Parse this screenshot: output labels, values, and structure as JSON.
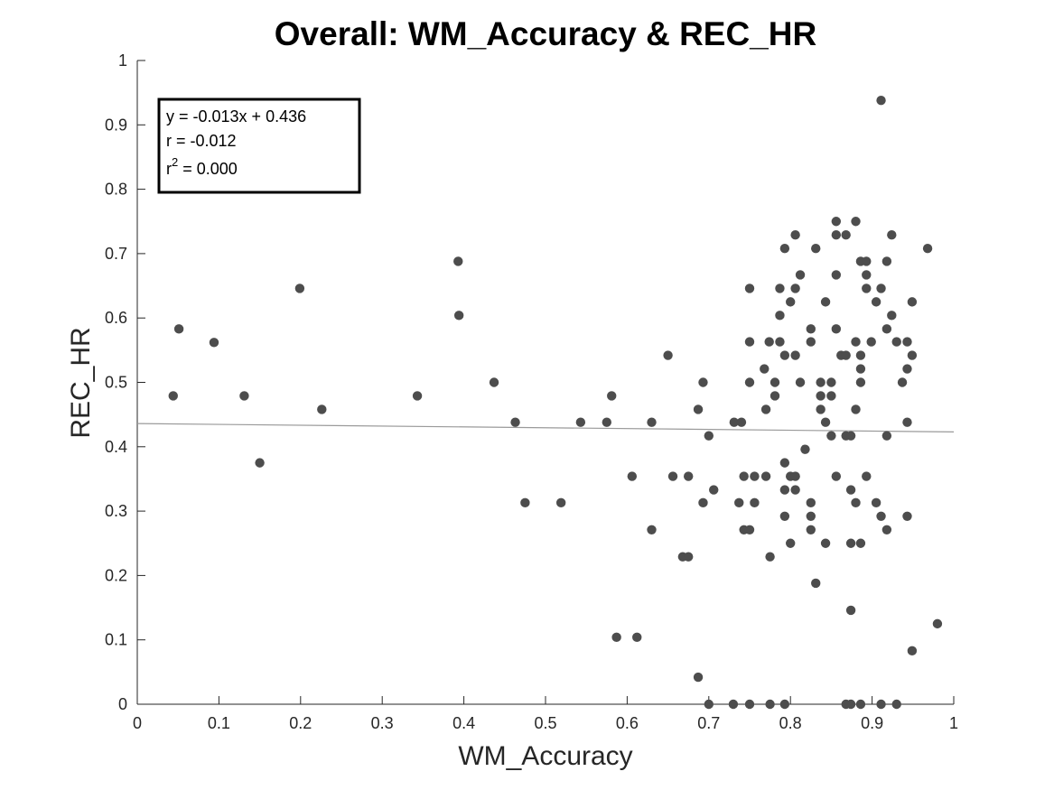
{
  "chart_data": {
    "type": "scatter",
    "title": "Overall: WM_Accuracy & REC_HR",
    "xlabel": "WM_Accuracy",
    "ylabel": "REC_HR",
    "xlim": [
      0,
      1
    ],
    "ylim": [
      0,
      1
    ],
    "xticks": [
      "0",
      "0.1",
      "0.2",
      "0.3",
      "0.4",
      "0.5",
      "0.6",
      "0.7",
      "0.8",
      "0.9",
      "1"
    ],
    "yticks": [
      "0",
      "0.1",
      "0.2",
      "0.3",
      "0.4",
      "0.5",
      "0.6",
      "0.7",
      "0.8",
      "0.9",
      "1"
    ],
    "grid": false,
    "marker_color": "#4d4d4d",
    "fit_line": {
      "slope": -0.013,
      "intercept": 0.436,
      "color": "#9a9a9a"
    },
    "stats": {
      "equation": "y = -0.013x + 0.436",
      "r": "r = -0.012",
      "r2_prefix": "r",
      "r2_exponent": "2",
      "r2_value": " = 0.000"
    },
    "points": [
      [
        0.044,
        0.479
      ],
      [
        0.051,
        0.583
      ],
      [
        0.094,
        0.562
      ],
      [
        0.131,
        0.479
      ],
      [
        0.15,
        0.375
      ],
      [
        0.199,
        0.646
      ],
      [
        0.226,
        0.458
      ],
      [
        0.343,
        0.479
      ],
      [
        0.393,
        0.688
      ],
      [
        0.394,
        0.604
      ],
      [
        0.437,
        0.5
      ],
      [
        0.463,
        0.438
      ],
      [
        0.475,
        0.313
      ],
      [
        0.519,
        0.313
      ],
      [
        0.543,
        0.438
      ],
      [
        0.575,
        0.438
      ],
      [
        0.581,
        0.479
      ],
      [
        0.587,
        0.104
      ],
      [
        0.606,
        0.354
      ],
      [
        0.612,
        0.104
      ],
      [
        0.63,
        0.271
      ],
      [
        0.63,
        0.438
      ],
      [
        0.65,
        0.542
      ],
      [
        0.656,
        0.354
      ],
      [
        0.668,
        0.229
      ],
      [
        0.675,
        0.229
      ],
      [
        0.675,
        0.354
      ],
      [
        0.687,
        0.042
      ],
      [
        0.687,
        0.458
      ],
      [
        0.693,
        0.5
      ],
      [
        0.693,
        0.313
      ],
      [
        0.7,
        0.417
      ],
      [
        0.7,
        0.0
      ],
      [
        0.706,
        0.333
      ],
      [
        0.73,
        0.0
      ],
      [
        0.731,
        0.438
      ],
      [
        0.737,
        0.313
      ],
      [
        0.74,
        0.438
      ],
      [
        0.743,
        0.354
      ],
      [
        0.743,
        0.271
      ],
      [
        0.75,
        0.271
      ],
      [
        0.75,
        0.646
      ],
      [
        0.75,
        0.563
      ],
      [
        0.75,
        0.5
      ],
      [
        0.75,
        0.0
      ],
      [
        0.756,
        0.354
      ],
      [
        0.756,
        0.313
      ],
      [
        0.768,
        0.521
      ],
      [
        0.77,
        0.354
      ],
      [
        0.77,
        0.458
      ],
      [
        0.774,
        0.563
      ],
      [
        0.775,
        0.229
      ],
      [
        0.775,
        0.0
      ],
      [
        0.781,
        0.5
      ],
      [
        0.781,
        0.479
      ],
      [
        0.787,
        0.604
      ],
      [
        0.787,
        0.646
      ],
      [
        0.787,
        0.563
      ],
      [
        0.793,
        0.542
      ],
      [
        0.793,
        0.708
      ],
      [
        0.793,
        0.375
      ],
      [
        0.793,
        0.333
      ],
      [
        0.793,
        0.292
      ],
      [
        0.793,
        0.0
      ],
      [
        0.8,
        0.354
      ],
      [
        0.8,
        0.625
      ],
      [
        0.8,
        0.25
      ],
      [
        0.806,
        0.729
      ],
      [
        0.806,
        0.646
      ],
      [
        0.806,
        0.542
      ],
      [
        0.806,
        0.354
      ],
      [
        0.806,
        0.333
      ],
      [
        0.812,
        0.667
      ],
      [
        0.812,
        0.5
      ],
      [
        0.818,
        0.396
      ],
      [
        0.825,
        0.583
      ],
      [
        0.825,
        0.563
      ],
      [
        0.825,
        0.313
      ],
      [
        0.825,
        0.292
      ],
      [
        0.825,
        0.271
      ],
      [
        0.831,
        0.708
      ],
      [
        0.831,
        0.188
      ],
      [
        0.837,
        0.5
      ],
      [
        0.837,
        0.479
      ],
      [
        0.837,
        0.458
      ],
      [
        0.843,
        0.625
      ],
      [
        0.843,
        0.438
      ],
      [
        0.843,
        0.25
      ],
      [
        0.85,
        0.5
      ],
      [
        0.85,
        0.479
      ],
      [
        0.85,
        0.417
      ],
      [
        0.856,
        0.75
      ],
      [
        0.856,
        0.729
      ],
      [
        0.856,
        0.667
      ],
      [
        0.856,
        0.583
      ],
      [
        0.856,
        0.354
      ],
      [
        0.862,
        0.542
      ],
      [
        0.868,
        0.729
      ],
      [
        0.868,
        0.542
      ],
      [
        0.868,
        0.417
      ],
      [
        0.868,
        0.0
      ],
      [
        0.874,
        0.417
      ],
      [
        0.874,
        0.333
      ],
      [
        0.874,
        0.25
      ],
      [
        0.874,
        0.146
      ],
      [
        0.874,
        0.0
      ],
      [
        0.88,
        0.75
      ],
      [
        0.88,
        0.563
      ],
      [
        0.88,
        0.458
      ],
      [
        0.88,
        0.313
      ],
      [
        0.886,
        0.688
      ],
      [
        0.886,
        0.542
      ],
      [
        0.886,
        0.521
      ],
      [
        0.886,
        0.5
      ],
      [
        0.886,
        0.25
      ],
      [
        0.886,
        0.0
      ],
      [
        0.893,
        0.688
      ],
      [
        0.893,
        0.667
      ],
      [
        0.893,
        0.646
      ],
      [
        0.893,
        0.354
      ],
      [
        0.899,
        0.563
      ],
      [
        0.905,
        0.625
      ],
      [
        0.905,
        0.313
      ],
      [
        0.911,
        0.938
      ],
      [
        0.911,
        0.646
      ],
      [
        0.911,
        0.292
      ],
      [
        0.911,
        0.0
      ],
      [
        0.918,
        0.688
      ],
      [
        0.918,
        0.583
      ],
      [
        0.918,
        0.417
      ],
      [
        0.918,
        0.271
      ],
      [
        0.924,
        0.729
      ],
      [
        0.924,
        0.604
      ],
      [
        0.93,
        0.563
      ],
      [
        0.93,
        0.0
      ],
      [
        0.937,
        0.5
      ],
      [
        0.943,
        0.563
      ],
      [
        0.943,
        0.521
      ],
      [
        0.943,
        0.438
      ],
      [
        0.943,
        0.292
      ],
      [
        0.949,
        0.625
      ],
      [
        0.949,
        0.542
      ],
      [
        0.949,
        0.083
      ],
      [
        0.968,
        0.708
      ],
      [
        0.98,
        0.125
      ]
    ]
  }
}
